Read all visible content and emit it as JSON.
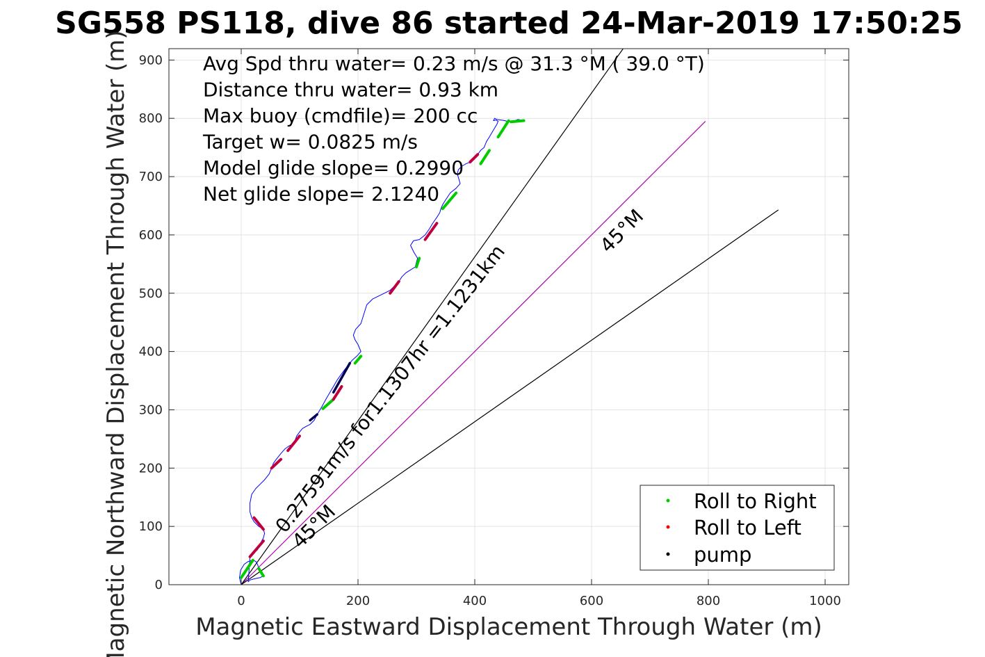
{
  "chart_data": {
    "type": "line",
    "title": "SG558 PS118, dive 86 started 24-Mar-2019 17:50:25",
    "xlabel": "Magnetic Eastward Displacement Through Water (m)",
    "ylabel": "Magnetic Northward Displacement Through Water (m)",
    "xlim": [
      -125,
      1040
    ],
    "ylim": [
      0,
      920
    ],
    "xticks": [
      0,
      200,
      400,
      600,
      800,
      1000
    ],
    "yticks": [
      0,
      100,
      200,
      300,
      400,
      500,
      600,
      700,
      800,
      900
    ],
    "grid": true,
    "annotations": [
      "Avg Spd thru water=  0.23 m/s @  31.3 °M ( 39.0 °T)",
      "Distance thru water=  0.93 km",
      "Max buoy (cmdfile)= 200 cc",
      "Target w= 0.0825 m/s",
      "Model glide slope= 0.2990",
      "Net glide slope= 2.1240"
    ],
    "line_labels": {
      "speed": "0.27591m/s for1.1307hr =1.1231km",
      "heading_upper": "45°M",
      "heading_lower": "45°M"
    },
    "reference_lines": [
      {
        "name": "heading-line",
        "color": "#b000b0",
        "x": [
          0,
          795
        ],
        "y": [
          0,
          795
        ]
      },
      {
        "name": "upper-bound-line",
        "color": "#000000",
        "x": [
          0,
          658
        ],
        "y": [
          0,
          925
        ]
      },
      {
        "name": "lower-bound-line",
        "color": "#000000",
        "x": [
          0,
          920
        ],
        "y": [
          0,
          643
        ]
      }
    ],
    "track": {
      "color": "#0000ff",
      "x": [
        0,
        -3,
        -1,
        5,
        12,
        20,
        25,
        28,
        30,
        35,
        38,
        32,
        22,
        15,
        12,
        15,
        22,
        28,
        32,
        35,
        38,
        40,
        38,
        30,
        22,
        18,
        15,
        15,
        18,
        25,
        32,
        40,
        48,
        52,
        55,
        60,
        68,
        75,
        82,
        90,
        95,
        100,
        105,
        112,
        118,
        125,
        130,
        138,
        145,
        152,
        158,
        165,
        172,
        178,
        182,
        186,
        190,
        198,
        205,
        200,
        195,
        192,
        196,
        205,
        215,
        225,
        235,
        245,
        255,
        262,
        270,
        275,
        282,
        290,
        298,
        302,
        296,
        290,
        295,
        305,
        315,
        322,
        328,
        335,
        340,
        342,
        345,
        350,
        358,
        368,
        375,
        373,
        370,
        372,
        378,
        385,
        392,
        398,
        405,
        410,
        416,
        420,
        425,
        432,
        438,
        440,
        436,
        432,
        434,
        438,
        446,
        452,
        458,
        462,
        468,
        474,
        480,
        484
      ],
      "y": [
        0,
        12,
        25,
        35,
        40,
        42,
        40,
        35,
        28,
        22,
        15,
        12,
        10,
        8,
        5,
        48,
        55,
        60,
        68,
        75,
        80,
        88,
        95,
        100,
        108,
        115,
        125,
        140,
        155,
        165,
        172,
        180,
        190,
        200,
        208,
        215,
        225,
        233,
        238,
        242,
        255,
        262,
        268,
        272,
        275,
        282,
        292,
        305,
        318,
        330,
        340,
        352,
        362,
        370,
        375,
        380,
        385,
        392,
        400,
        412,
        420,
        428,
        438,
        448,
        480,
        490,
        495,
        500,
        505,
        512,
        520,
        528,
        535,
        540,
        545,
        560,
        570,
        582,
        590,
        592,
        600,
        610,
        620,
        630,
        638,
        645,
        652,
        660,
        672,
        680,
        688,
        695,
        705,
        712,
        718,
        722,
        725,
        730,
        738,
        745,
        750,
        760,
        768,
        780,
        790,
        795,
        797,
        796,
        800,
        798,
        797,
        796,
        794,
        795,
        796,
        798,
        797,
        796
      ]
    },
    "legend": {
      "position": "bottom-right",
      "entries": [
        {
          "label": "Roll to Right",
          "color": "#00cc00"
        },
        {
          "label": "Roll to Left",
          "color": "#ff0000"
        },
        {
          "label": "pump",
          "color": "#000000"
        }
      ]
    },
    "roll_right_segments": [
      [
        [
          0,
          12
        ],
        [
          20,
          42
        ]
      ],
      [
        [
          30,
          28
        ],
        [
          38,
          15
        ]
      ],
      [
        [
          140,
          302
        ],
        [
          158,
          318
        ]
      ],
      [
        [
          195,
          380
        ],
        [
          205,
          392
        ]
      ],
      [
        [
          300,
          545
        ],
        [
          305,
          560
        ]
      ],
      [
        [
          345,
          645
        ],
        [
          368,
          672
        ]
      ],
      [
        [
          410,
          722
        ],
        [
          425,
          745
        ]
      ],
      [
        [
          440,
          768
        ],
        [
          458,
          796
        ]
      ],
      [
        [
          462,
          794
        ],
        [
          484,
          796
        ]
      ]
    ],
    "roll_left_segments": [
      [
        [
          15,
          48
        ],
        [
          38,
          75
        ]
      ],
      [
        [
          38,
          95
        ],
        [
          22,
          115
        ]
      ],
      [
        [
          52,
          200
        ],
        [
          68,
          215
        ]
      ],
      [
        [
          80,
          230
        ],
        [
          100,
          255
        ]
      ],
      [
        [
          158,
          318
        ],
        [
          172,
          340
        ]
      ],
      [
        [
          255,
          500
        ],
        [
          270,
          520
        ]
      ],
      [
        [
          315,
          592
        ],
        [
          335,
          620
        ]
      ],
      [
        [
          392,
          725
        ],
        [
          405,
          738
        ]
      ]
    ],
    "pump_segments": [
      [
        [
          118,
          282
        ],
        [
          130,
          292
        ]
      ],
      [
        [
          158,
          330
        ],
        [
          186,
          380
        ]
      ]
    ]
  }
}
